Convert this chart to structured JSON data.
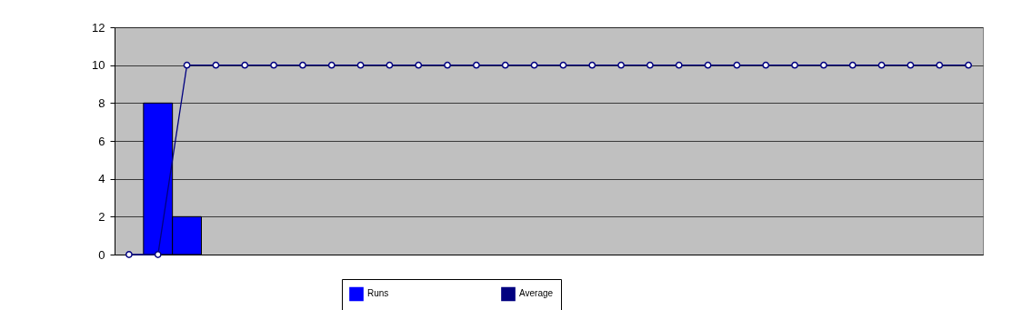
{
  "chart_data": {
    "type": "bar",
    "categories": [
      null,
      null,
      null,
      null,
      null,
      null,
      null,
      null,
      null,
      null,
      null,
      null,
      null,
      null,
      null,
      null,
      null,
      null,
      null,
      null,
      null,
      null,
      null,
      null,
      null,
      null,
      null,
      null,
      null,
      null
    ],
    "series": [
      {
        "name": "Runs",
        "color": "#0000ff",
        "values": [
          null,
          8,
          2,
          null,
          null,
          null,
          null,
          null,
          null,
          null,
          null,
          null,
          null,
          null,
          null,
          null,
          null,
          null,
          null,
          null,
          null,
          null,
          null,
          null,
          null,
          null,
          null,
          null,
          null,
          null
        ]
      },
      {
        "name": "Average",
        "type": "line",
        "color": "#000080",
        "values": [
          0,
          0,
          10,
          10,
          10,
          10,
          10,
          10,
          10,
          10,
          10,
          10,
          10,
          10,
          10,
          10,
          10,
          10,
          10,
          10,
          10,
          10,
          10,
          10,
          10,
          10,
          10,
          10,
          10,
          10
        ]
      }
    ],
    "ylim": [
      0,
      12
    ],
    "yticks": [
      0,
      2,
      4,
      6,
      8,
      10,
      12
    ],
    "grid": "y",
    "legend": "bottom",
    "marker": "circle",
    "line_style": "solid"
  }
}
